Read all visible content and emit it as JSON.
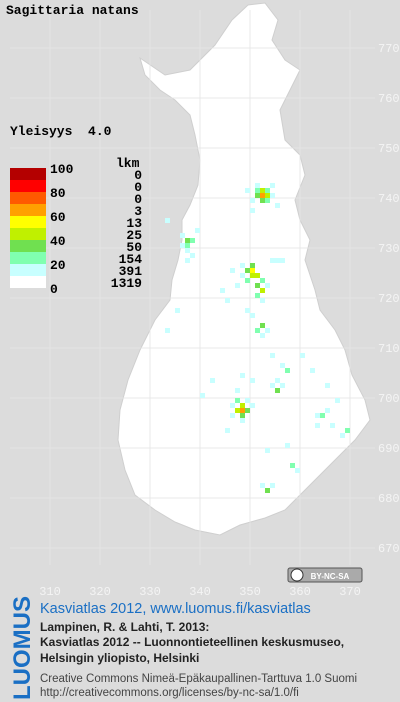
{
  "title": "Sagittaria natans",
  "frequency": "Yleisyys  4.0",
  "legend": {
    "scale_labels": [
      100,
      80,
      60,
      40,
      20,
      0
    ],
    "colors": [
      "#b40000",
      "#ff0000",
      "#ff5a00",
      "#ffa000",
      "#ffff00",
      "#c0f000",
      "#70e050",
      "#80ffb0",
      "#c8ffff",
      "#ffffff"
    ],
    "count_header": "lkm",
    "counts": [
      0,
      0,
      0,
      3,
      13,
      25,
      50,
      154,
      391,
      1319
    ]
  },
  "grid": {
    "xticks": [
      310,
      320,
      330,
      340,
      350,
      360,
      370
    ],
    "yticks": [
      770,
      760,
      750,
      740,
      730,
      720,
      710,
      700,
      690,
      680,
      670
    ]
  },
  "cells": [
    [
      352,
      740,
      65
    ],
    [
      353,
      740,
      45
    ],
    [
      352,
      741,
      40
    ],
    [
      351,
      740,
      35
    ],
    [
      352,
      739,
      35
    ],
    [
      353,
      741,
      25
    ],
    [
      351,
      741,
      25
    ],
    [
      353,
      739,
      25
    ],
    [
      354,
      740,
      15
    ],
    [
      350,
      739,
      15
    ],
    [
      351,
      742,
      15
    ],
    [
      354,
      742,
      15
    ],
    [
      349,
      741,
      15
    ],
    [
      355,
      738,
      15
    ],
    [
      350,
      737,
      15
    ],
    [
      337,
      731,
      35
    ],
    [
      337,
      730,
      25
    ],
    [
      338,
      731,
      25
    ],
    [
      336,
      730,
      15
    ],
    [
      337,
      729,
      15
    ],
    [
      338,
      728,
      15
    ],
    [
      336,
      732,
      15
    ],
    [
      337,
      727,
      15
    ],
    [
      350,
      725,
      55
    ],
    [
      350,
      724,
      45
    ],
    [
      351,
      724,
      40
    ],
    [
      349,
      725,
      35
    ],
    [
      350,
      726,
      30
    ],
    [
      351,
      722,
      35
    ],
    [
      352,
      721,
      40
    ],
    [
      351,
      720,
      25
    ],
    [
      349,
      723,
      25
    ],
    [
      348,
      724,
      15
    ],
    [
      352,
      723,
      25
    ],
    [
      348,
      726,
      15
    ],
    [
      347,
      722,
      15
    ],
    [
      352,
      719,
      15
    ],
    [
      353,
      722,
      15
    ],
    [
      346,
      725,
      15
    ],
    [
      354,
      727,
      15
    ],
    [
      355,
      727,
      15
    ],
    [
      356,
      727,
      15
    ],
    [
      344,
      721,
      15
    ],
    [
      345,
      719,
      15
    ],
    [
      352,
      714,
      35
    ],
    [
      351,
      713,
      25
    ],
    [
      353,
      713,
      15
    ],
    [
      352,
      712,
      15
    ],
    [
      350,
      716,
      15
    ],
    [
      349,
      717,
      15
    ],
    [
      348,
      697,
      65
    ],
    [
      347,
      697,
      45
    ],
    [
      348,
      698,
      40
    ],
    [
      349,
      697,
      35
    ],
    [
      348,
      696,
      30
    ],
    [
      347,
      699,
      25
    ],
    [
      349,
      699,
      15
    ],
    [
      346,
      696,
      15
    ],
    [
      350,
      698,
      15
    ],
    [
      348,
      695,
      15
    ],
    [
      346,
      698,
      15
    ],
    [
      355,
      701,
      30
    ],
    [
      354,
      702,
      15
    ],
    [
      356,
      702,
      15
    ],
    [
      355,
      703,
      15
    ],
    [
      357,
      705,
      25
    ],
    [
      356,
      706,
      15
    ],
    [
      354,
      708,
      15
    ],
    [
      350,
      703,
      15
    ],
    [
      348,
      704,
      15
    ],
    [
      347,
      701,
      15
    ],
    [
      364,
      696,
      25
    ],
    [
      363,
      696,
      15
    ],
    [
      365,
      697,
      15
    ],
    [
      363,
      694,
      15
    ],
    [
      366,
      694,
      15
    ],
    [
      369,
      693,
      25
    ],
    [
      368,
      692,
      15
    ],
    [
      367,
      699,
      15
    ],
    [
      365,
      702,
      15
    ],
    [
      362,
      705,
      15
    ],
    [
      360,
      708,
      15
    ],
    [
      353,
      681,
      35
    ],
    [
      352,
      682,
      15
    ],
    [
      354,
      682,
      15
    ],
    [
      358,
      686,
      25
    ],
    [
      359,
      685,
      15
    ],
    [
      357,
      690,
      15
    ],
    [
      353,
      689,
      15
    ],
    [
      345,
      693,
      15
    ],
    [
      340,
      700,
      15
    ],
    [
      342,
      703,
      15
    ],
    [
      339,
      733,
      15
    ],
    [
      333,
      735,
      15
    ],
    [
      333,
      713,
      15
    ],
    [
      335,
      717,
      15
    ]
  ],
  "cc_badge": "BY-NC-SA",
  "footer": {
    "logo": "LUOMUS",
    "link": "Kasviatlas 2012, www.luomus.fi/kasviatlas",
    "citation": [
      "Lampinen, R. & Lahti, T. 2013:",
      "Kasviatlas 2012 -- Luonnontieteellinen keskusmuseo,",
      "Helsingin yliopisto, Helsinki"
    ],
    "license": "Creative Commons Nimeä-Epäkaupallinen-Tarttuva 1.0 Suomi",
    "license_url": "http://creativecommons.org/licenses/by-nc-sa/1.0/fi"
  }
}
